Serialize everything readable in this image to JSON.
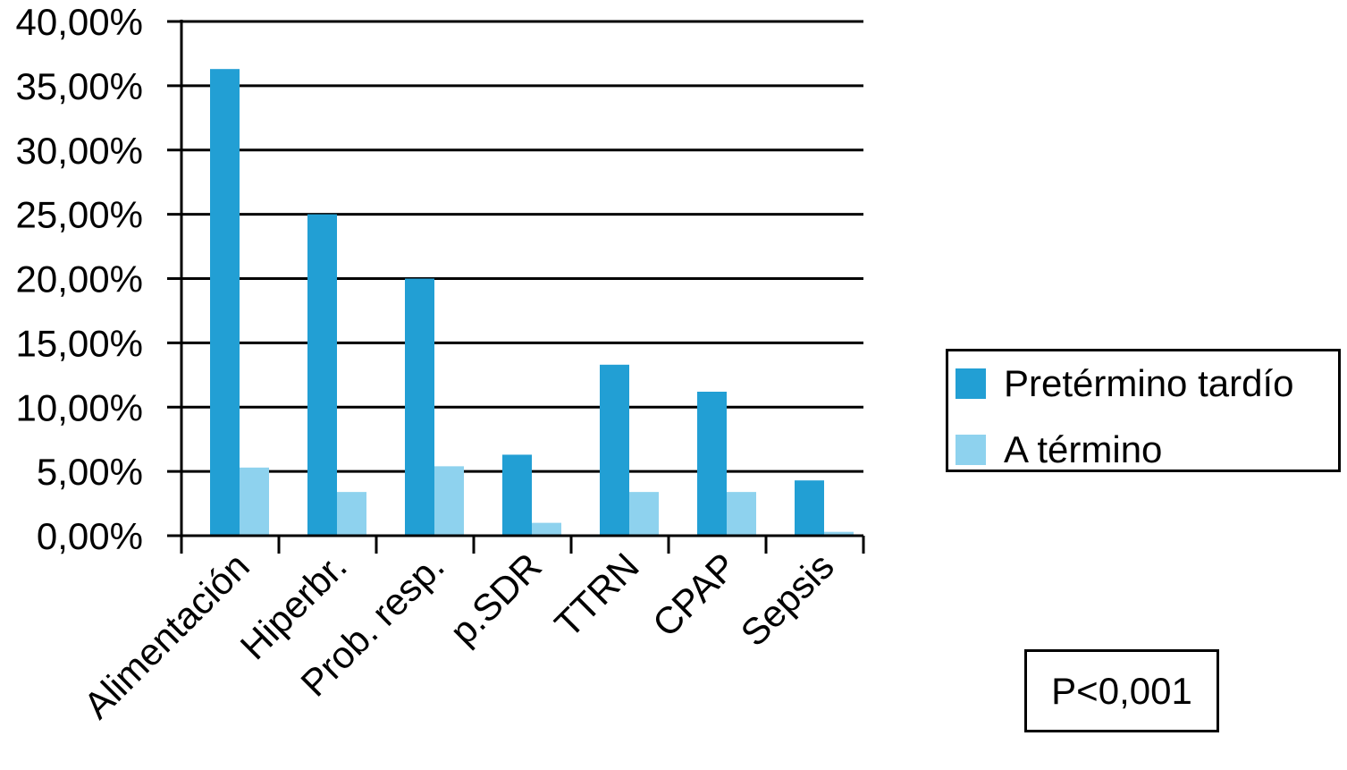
{
  "chart_data": {
    "type": "bar",
    "title": "",
    "xlabel": "",
    "ylabel": "",
    "categories": [
      "Alimentación",
      "Hiperbr.",
      "Prob. resp.",
      "p.SDR",
      "TTRN",
      "CPAP",
      "Sepsis"
    ],
    "series": [
      {
        "name": "Pretérmino tardío",
        "color": "#229fd4",
        "values": [
          36.3,
          25.0,
          20.0,
          6.3,
          13.3,
          11.2,
          4.3
        ]
      },
      {
        "name": "A término",
        "color": "#8ed2ee",
        "values": [
          5.3,
          3.4,
          5.4,
          1.0,
          3.4,
          3.4,
          0.3
        ]
      }
    ],
    "ylim": [
      0,
      40
    ],
    "yticks": [
      "0,00%",
      "5,00%",
      "10,00%",
      "15,00%",
      "20,00%",
      "25,00%",
      "30,00%",
      "35,00%",
      "40,00%"
    ],
    "grid": true,
    "legend_position": "right",
    "annotation": "P<0,001"
  }
}
